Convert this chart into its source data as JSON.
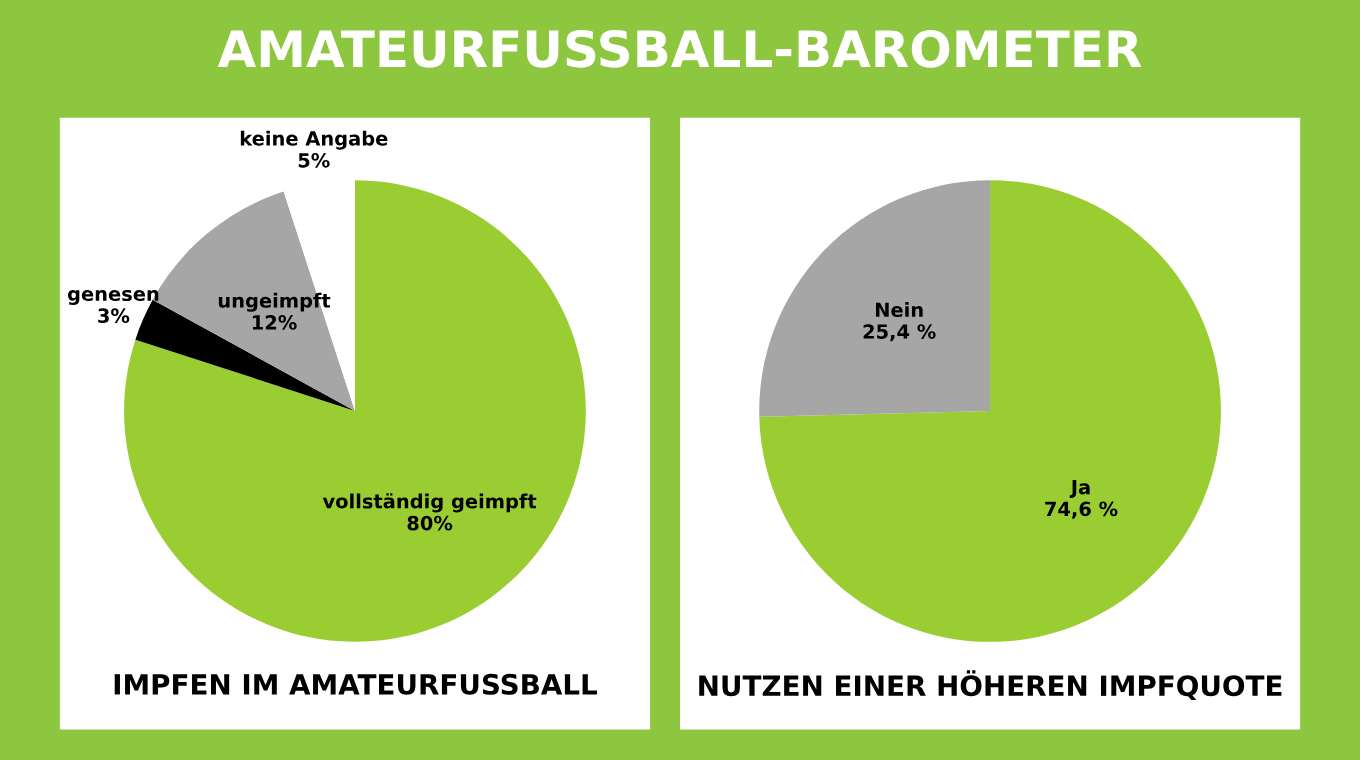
{
  "chart_data": [
    {
      "type": "pie",
      "title": "AMATEURFUSSBALL-BAROMETER",
      "xlabel": "IMPFEN IM AMATEURFUSSBALL",
      "categories": [
        "vollständig geimpft",
        "genesen",
        "ungeimpft",
        "keine Angabe"
      ],
      "values": [
        80,
        3,
        12,
        5
      ],
      "value_labels": [
        "80%",
        "3%",
        "12%",
        "5%"
      ],
      "colors": [
        "#9acd32",
        "#000000",
        "#a6a6a6",
        "#ffffff"
      ]
    },
    {
      "type": "pie",
      "xlabel": "NUTZEN EINER HÖHEREN IMPFQUOTE",
      "categories": [
        "Ja",
        "Nein"
      ],
      "values": [
        74.6,
        25.4
      ],
      "value_labels": [
        "74,6 %",
        "25,4 %"
      ],
      "colors": [
        "#9acd32",
        "#a6a6a6"
      ]
    }
  ]
}
